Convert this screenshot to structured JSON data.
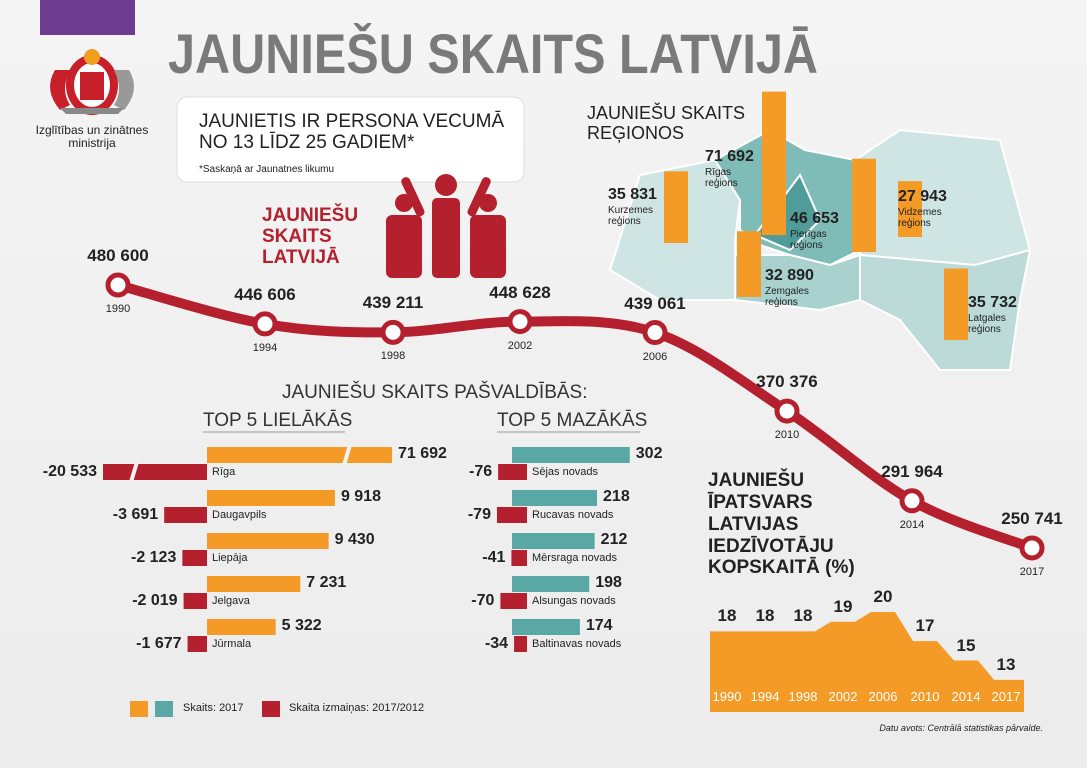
{
  "header": {
    "title": "JAUNIEŠU SKAITS LATVIJĀ",
    "ministry": "Izglītības un zinātnes ministrija"
  },
  "definition": {
    "text": "JAUNIETIS IR PERSONA VECUMĀ NO 13 LĪDZ 25 GADIEM*",
    "note": "*Saskaņā ar Jaunatnes likumu"
  },
  "section_title": "JAUNIEŠU SKAITS PAŠVALDĪBĀS:",
  "source": "Datu avots: Centrālā statistikas pārvalde.",
  "chart_data": [
    {
      "type": "line",
      "title": "JAUNIEŠU SKAITS LATVIJĀ",
      "color": "#b5202e",
      "categories": [
        "1990",
        "1994",
        "1998",
        "2002",
        "2006",
        "2010",
        "2014",
        "2017"
      ],
      "values": [
        480600,
        446606,
        439211,
        448628,
        439061,
        370376,
        291964,
        250741
      ],
      "value_labels": [
        "480 600",
        "446 606",
        "439 211",
        "448 628",
        "439 061",
        "370 376",
        "291 964",
        "250 741"
      ]
    },
    {
      "type": "region-bars",
      "title": "JAUNIEŠU SKAITS REĢIONOS",
      "color": "#f39a27",
      "categories": [
        "Rīgas reģions",
        "Kurzemes reģions",
        "Pierīgas reģions",
        "Zemgales reģions",
        "Vidzemes reģions",
        "Latgales reģions"
      ],
      "values": [
        71692,
        35831,
        46653,
        32890,
        27943,
        35732
      ],
      "value_labels": [
        "71 692",
        "35 831",
        "46 653",
        "32 890",
        "27 943",
        "35 732"
      ]
    },
    {
      "type": "hbar",
      "title": "TOP 5 LIELĀKĀS",
      "categories": [
        "Rīga",
        "Daugavpils",
        "Liepāja",
        "Jelgava",
        "Jūrmala"
      ],
      "series": [
        {
          "name": "Skaits: 2017",
          "color": "#f39a27",
          "values": [
            71692,
            9918,
            9430,
            7231,
            5322
          ],
          "value_labels": [
            "71 692",
            "9 918",
            "9 430",
            "7 231",
            "5 322"
          ]
        },
        {
          "name": "Skaita izmaiņas: 2017/2012",
          "color": "#b5202e",
          "values": [
            -20533,
            -3691,
            -2123,
            -2019,
            -1677
          ],
          "value_labels": [
            "-20 533",
            "-3 691",
            "-2 123",
            "-2 019",
            "-1 677"
          ]
        }
      ]
    },
    {
      "type": "hbar",
      "title": "TOP 5 MAZĀKĀS",
      "categories": [
        "Sējas novads",
        "Rucavas novads",
        "Mērsraga novads",
        "Alsungas novads",
        "Baltinavas novads"
      ],
      "series": [
        {
          "color": "#5aa8a5",
          "values": [
            302,
            218,
            212,
            198,
            174
          ]
        },
        {
          "color": "#b5202e",
          "values": [
            -76,
            -79,
            -41,
            -70,
            -34
          ]
        }
      ]
    },
    {
      "type": "area",
      "title": "JAUNIEŠU ĪPATSVARS LATVIJAS IEDZĪVOTĀJU KOPSKAITĀ (%)",
      "color": "#f39a27",
      "categories": [
        "1990",
        "1994",
        "1998",
        "2002",
        "2006",
        "2010",
        "2014",
        "2017"
      ],
      "values": [
        18,
        18,
        18,
        19,
        20,
        17,
        15,
        13
      ]
    }
  ]
}
